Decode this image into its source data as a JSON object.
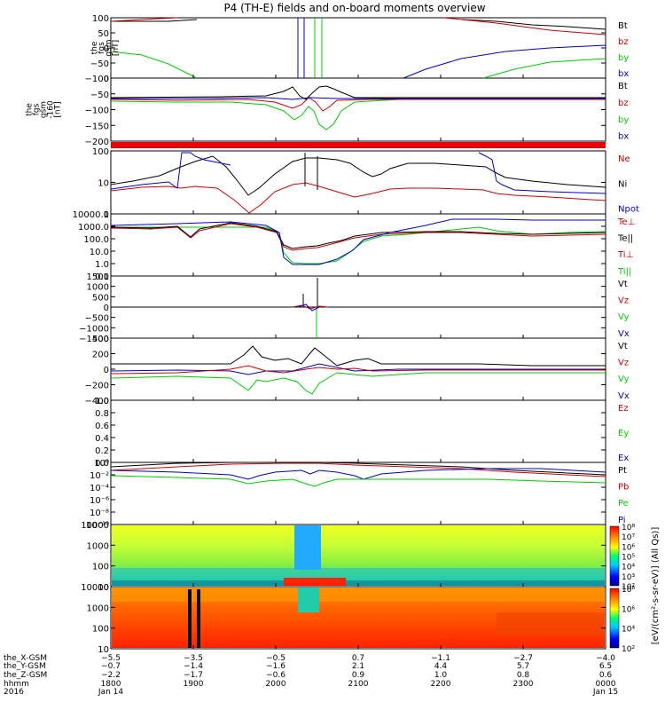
{
  "title": "P4 (TH-E) fields and on-board moments overview",
  "chart_data": {
    "type": "line",
    "x": {
      "ticks": [
        "1800",
        "1900",
        "2000",
        "2100",
        "2200",
        "2300",
        "0000"
      ],
      "range": [
        1800,
        2400
      ],
      "unit": "hhmm"
    },
    "panels": [
      {
        "ylabel": [
          "the",
          "fgs",
          "gsm",
          "[nT]"
        ],
        "ticks": [
          "100",
          "50",
          "0",
          "−50",
          "−100"
        ],
        "yrange": [
          -100,
          100
        ],
        "legend": [
          {
            "name": "Bt",
            "color": "#000000"
          },
          {
            "name": "bz",
            "color": "#cc0000"
          },
          {
            "name": "by",
            "color": "#00cc00"
          },
          {
            "name": "bx",
            "color": "#0000cc"
          }
        ]
      },
      {
        "ylabel": [
          "the",
          "fgs",
          "gsm",
          "-160",
          "[nT]"
        ],
        "ticks": [
          "0",
          "−50",
          "−100",
          "−150",
          "−200"
        ],
        "yrange": [
          -220,
          20
        ],
        "legend": [
          {
            "name": "Bt",
            "color": "#000000"
          },
          {
            "name": "bz",
            "color": "#cc0000"
          },
          {
            "name": "by",
            "color": "#00cc00"
          },
          {
            "name": "bx",
            "color": "#0000cc"
          }
        ]
      },
      {
        "ylabel": [
          "Density",
          "[cm-3]"
        ],
        "ticks": [
          "100",
          "10",
          "1"
        ],
        "log": true,
        "legend": [
          {
            "name": "Ne",
            "color": "#cc0000"
          },
          {
            "name": "Ni",
            "color": "#000000"
          },
          {
            "name": "Npot",
            "color": "#0000cc"
          }
        ]
      },
      {
        "ylabel": [
          "mom3",
          "[eV]"
        ],
        "ticks": [
          "10000.0",
          "1000.0",
          "100.0",
          "10.0",
          "1.0",
          "0.1"
        ],
        "log": true,
        "legend": [
          {
            "name": "Te⊥",
            "color": "#cc0000"
          },
          {
            "name": "Te||",
            "color": "#000000"
          },
          {
            "name": "Ti⊥",
            "color": "#cc0000"
          },
          {
            "name": "Ti||",
            "color": "#00cc00"
          }
        ]
      },
      {
        "ylabel": [
          "the",
          "peim",
          "velocity",
          "gsm",
          "[km/s]"
        ],
        "ticks": [
          "1500",
          "1000",
          "500",
          "0",
          "−500",
          "−1000",
          "−1500"
        ],
        "yrange": [
          -1500,
          1500
        ],
        "legend": [
          {
            "name": "Vt",
            "color": "#000000"
          },
          {
            "name": "Vz",
            "color": "#cc0000"
          },
          {
            "name": "Vy",
            "color": "#00cc00"
          },
          {
            "name": "Vx",
            "color": "#0000cc"
          }
        ]
      },
      {
        "ylabel": [
          "the",
          "peem",
          "velocity",
          "gsm",
          "[km/s]"
        ],
        "ticks": [
          "400",
          "200",
          "0",
          "−200",
          "−400"
        ],
        "yrange": [
          -400,
          400
        ],
        "legend": [
          {
            "name": "Vt",
            "color": "#000000"
          },
          {
            "name": "Vz",
            "color": "#cc0000"
          },
          {
            "name": "Vy",
            "color": "#00cc00"
          },
          {
            "name": "Vx",
            "color": "#0000cc"
          }
        ]
      },
      {
        "ylabel": [
          "E=−VxB",
          "[mV/m]"
        ],
        "ticks": [
          "1.0",
          "0.8",
          "0.6",
          "0.4",
          "0.2",
          "0.0"
        ],
        "yrange": [
          0,
          1
        ],
        "legend": [
          {
            "name": "Ez",
            "color": "#cc0000"
          },
          {
            "name": "Ey",
            "color": "#00cc00"
          },
          {
            "name": "Ex",
            "color": "#0000cc"
          }
        ]
      },
      {
        "ylabel": [
          "Pressure",
          "[nPa]"
        ],
        "ticks": [
          "10⁰",
          "10⁻²",
          "10⁻⁴",
          "10⁻⁶",
          "10⁻⁸",
          "10⁻¹⁰"
        ],
        "log": true,
        "legend": [
          {
            "name": "Pt",
            "color": "#000000"
          },
          {
            "name": "Pb",
            "color": "#cc0000"
          },
          {
            "name": "Pe",
            "color": "#00cc00"
          },
          {
            "name": "Pi",
            "color": "#0000cc"
          }
        ]
      },
      {
        "ylabel": [
          "the",
          "peir",
          "en",
          "eflux",
          "eV",
          "(cm²-s-",
          "sr-eV)"
        ],
        "ticks": [
          "10000",
          "1000",
          "100",
          "10"
        ],
        "log": true,
        "spectrogram": true
      },
      {
        "ylabel": [
          "the",
          "peer",
          "en",
          "eflux",
          "eV",
          "(cm²-s-",
          "sr-eV)"
        ],
        "ticks": [
          "10000",
          "1000",
          "100",
          "10"
        ],
        "log": true,
        "spectrogram": true
      }
    ],
    "colorbars": [
      {
        "ticks": [
          "10⁸",
          "10⁷",
          "10⁶",
          "10⁵",
          "10⁴",
          "10³",
          "10²"
        ]
      },
      {
        "ticks": [
          "10⁸",
          "10⁶",
          "10⁴",
          "10²"
        ]
      }
    ],
    "colorbar_label": "[eV/(cm²-s-sr-eV)] (All Qs)]",
    "footer": {
      "rows": [
        {
          "label": "the_X-GSM",
          "values": [
            "−5.5",
            "−3.5",
            "−0.5",
            "0.7",
            "−1.1",
            "−2.7",
            "−4.0"
          ]
        },
        {
          "label": "the_Y-GSM",
          "values": [
            "−0.7",
            "−1.4",
            "−1.6",
            "2.1",
            "4.4",
            "5.7",
            "6.5"
          ]
        },
        {
          "label": "the_Z-GSM",
          "values": [
            "−2.2",
            "−1.7",
            "−0.6",
            "0.9",
            "1.0",
            "0.8",
            "0.6"
          ]
        },
        {
          "label": "hhmm",
          "values": [
            "1800",
            "1900",
            "2000",
            "2100",
            "2200",
            "2300",
            "0000"
          ]
        },
        {
          "label": "2016",
          "values": [
            "Jan 14",
            "",
            "",
            "",
            "",
            "",
            "Jan 15"
          ]
        }
      ]
    }
  }
}
